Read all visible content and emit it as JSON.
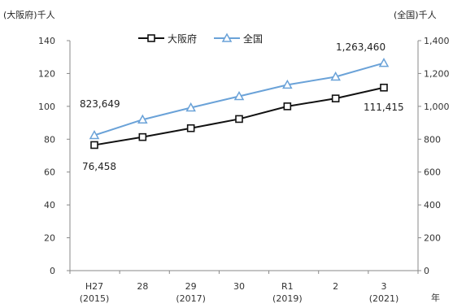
{
  "chart_data": {
    "type": "line",
    "left_unit_label": "(大阪府)千人",
    "right_unit_label": "(全国)千人",
    "x_axis_unit": "年",
    "categories": [
      {
        "label": "H27",
        "sub": "(2015)"
      },
      {
        "label": "28",
        "sub": ""
      },
      {
        "label": "29",
        "sub": "(2017)"
      },
      {
        "label": "30",
        "sub": ""
      },
      {
        "label": "R1",
        "sub": "(2019)"
      },
      {
        "label": "2",
        "sub": ""
      },
      {
        "label": "3",
        "sub": "(2021)"
      }
    ],
    "left_axis": {
      "min": 0,
      "max": 140,
      "ticks": [
        "0",
        "20",
        "40",
        "60",
        "80",
        "100",
        "120",
        "140"
      ]
    },
    "right_axis": {
      "min": 0,
      "max": 1400,
      "ticks": [
        "0",
        "200",
        "400",
        "600",
        "800",
        "1,000",
        "1,200",
        "1,400"
      ]
    },
    "legend_position": "top-center",
    "grid": false,
    "series": [
      {
        "name": "大阪府",
        "axis": "left",
        "color": "#111111",
        "marker": "square",
        "values": [
          76.458,
          81.3,
          86.7,
          92.3,
          100.0,
          104.8,
          111.415
        ],
        "first_label": "76,458",
        "last_label": "111,415"
      },
      {
        "name": "全国",
        "axis": "right",
        "color": "#6aa2d8",
        "marker": "triangle",
        "values": [
          823.649,
          919.0,
          992.0,
          1061.0,
          1131.0,
          1180.0,
          1263.46
        ],
        "first_label": "823,649",
        "last_label": "1,263,460"
      }
    ]
  }
}
